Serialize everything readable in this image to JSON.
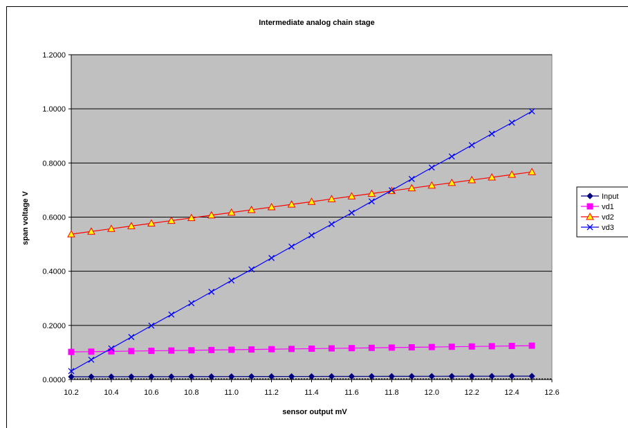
{
  "chart_data": {
    "type": "line",
    "title": "Intermediate analog chain stage",
    "xlabel": "sensor output  mV",
    "ylabel": "span voltage V",
    "xlim": [
      10.2,
      12.6
    ],
    "ylim": [
      0,
      1.2
    ],
    "xticks": [
      "10.2",
      "10.4",
      "10.6",
      "10.8",
      "11.0",
      "11.2",
      "11.4",
      "11.6",
      "11.8",
      "12.0",
      "12.2",
      "12.4",
      "12.6"
    ],
    "yticks": [
      "0.0000",
      "0.2000",
      "0.4000",
      "0.6000",
      "0.8000",
      "1.0000",
      "1.2000"
    ],
    "grid": true,
    "legend_position": "right",
    "plot_background": "#c0c0c0",
    "x": [
      10.2,
      10.3,
      10.4,
      10.5,
      10.6,
      10.7,
      10.8,
      10.9,
      11.0,
      11.1,
      11.2,
      11.3,
      11.4,
      11.5,
      11.6,
      11.7,
      11.8,
      11.9,
      12.0,
      12.1,
      12.2,
      12.3,
      12.4,
      12.5
    ],
    "series": [
      {
        "name": "Input",
        "color": "#000080",
        "marker": "diamond",
        "values": [
          0.0102,
          0.0103,
          0.0104,
          0.0105,
          0.0106,
          0.0107,
          0.0108,
          0.0109,
          0.011,
          0.0111,
          0.0112,
          0.0113,
          0.0114,
          0.0115,
          0.0116,
          0.0117,
          0.0118,
          0.0119,
          0.012,
          0.0121,
          0.0122,
          0.0123,
          0.0124,
          0.0125
        ]
      },
      {
        "name": "vd1",
        "color": "#ff00ff",
        "marker": "square",
        "values": [
          0.102,
          0.103,
          0.104,
          0.105,
          0.106,
          0.107,
          0.108,
          0.109,
          0.11,
          0.111,
          0.112,
          0.113,
          0.114,
          0.115,
          0.116,
          0.117,
          0.118,
          0.119,
          0.12,
          0.121,
          0.122,
          0.123,
          0.124,
          0.125
        ]
      },
      {
        "name": "vd2",
        "color": "#ff0000",
        "marker": "triangle",
        "marker_fill": "#ffff00",
        "values": [
          0.537,
          0.547,
          0.557,
          0.567,
          0.577,
          0.587,
          0.597,
          0.607,
          0.617,
          0.627,
          0.637,
          0.647,
          0.657,
          0.667,
          0.677,
          0.687,
          0.697,
          0.707,
          0.717,
          0.727,
          0.737,
          0.747,
          0.757,
          0.767
        ]
      },
      {
        "name": "vd3",
        "color": "#0000ff",
        "marker": "x",
        "values": [
          0.031,
          0.073,
          0.115,
          0.157,
          0.199,
          0.24,
          0.282,
          0.324,
          0.366,
          0.407,
          0.449,
          0.491,
          0.533,
          0.574,
          0.616,
          0.658,
          0.699,
          0.741,
          0.783,
          0.824,
          0.866,
          0.908,
          0.949,
          0.991
        ]
      }
    ]
  }
}
